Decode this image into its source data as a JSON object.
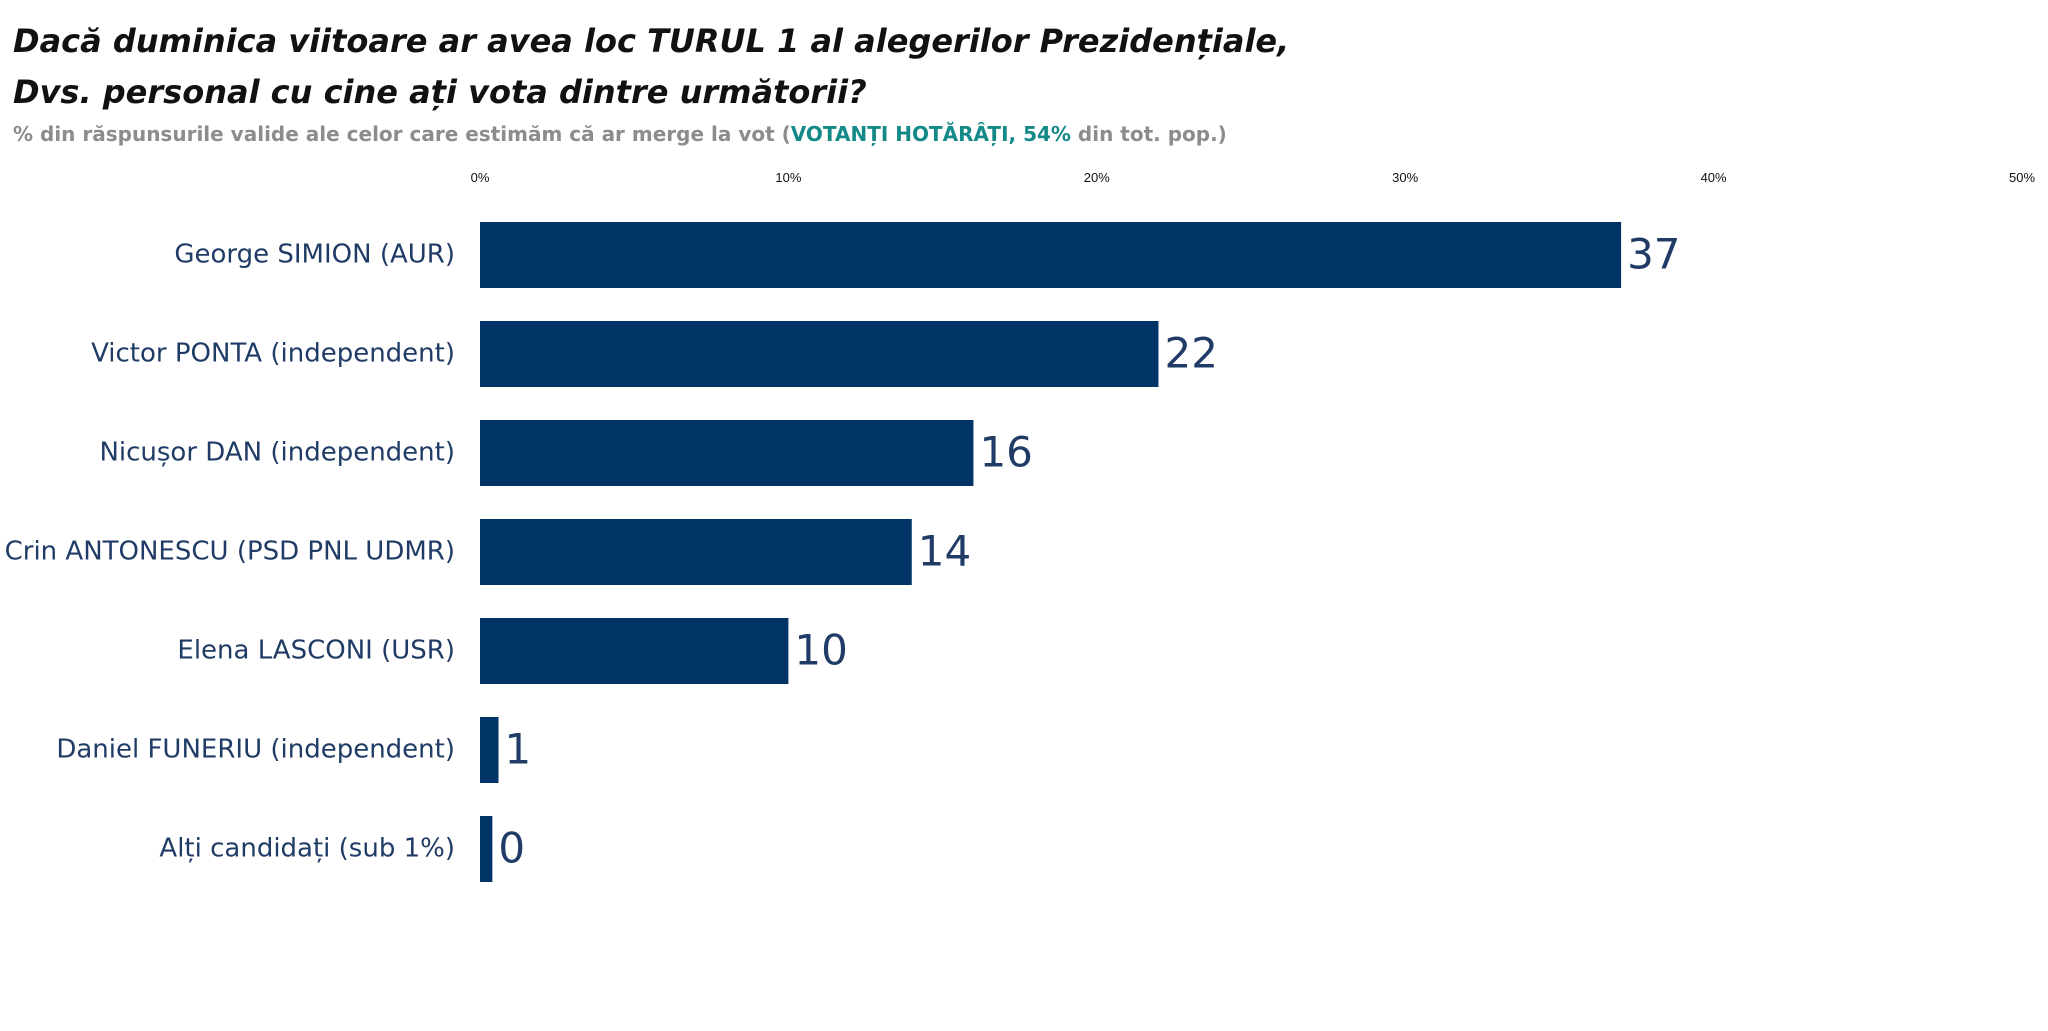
{
  "title": {
    "line1": "Dacă duminica viitoare ar avea loc TURUL 1 al alegerilor Prezidențiale,",
    "line2": "Dvs. personal cu cine ați vota dintre următorii?"
  },
  "subtitle": {
    "prefix": "% din răspunsurile valide ale celor care estimăm că ar merge la vot (",
    "highlight": "VOTANȚI HOTĂRÂȚI, 54%",
    "suffix": " din tot. pop.)"
  },
  "colors": {
    "bar": "#003366",
    "label": "#1f3b66",
    "highlight": "#138a87"
  },
  "chart_data": {
    "type": "bar",
    "orientation": "horizontal",
    "categories": [
      "George SIMION (AUR)",
      "Victor PONTA (independent)",
      "Nicușor DAN (independent)",
      "Crin ANTONESCU (PSD PNL UDMR)",
      "Elena LASCONI (USR)",
      "Daniel FUNERIU (independent)",
      "Alți candidați (sub 1%)"
    ],
    "values": [
      37,
      22,
      16,
      14,
      10,
      1,
      0
    ],
    "bar_values": [
      37,
      22,
      16,
      14,
      10,
      0.6,
      0.4
    ],
    "data_labels": [
      "37",
      "22",
      "16",
      "14",
      "10",
      "1",
      "0"
    ],
    "xlim": [
      0,
      50
    ],
    "xticks": [
      0,
      10,
      20,
      30,
      40,
      50
    ],
    "xtick_labels": [
      "0%",
      "10%",
      "20%",
      "30%",
      "40%",
      "50%"
    ],
    "axis_position": "top",
    "grid": false,
    "legend": "none"
  }
}
